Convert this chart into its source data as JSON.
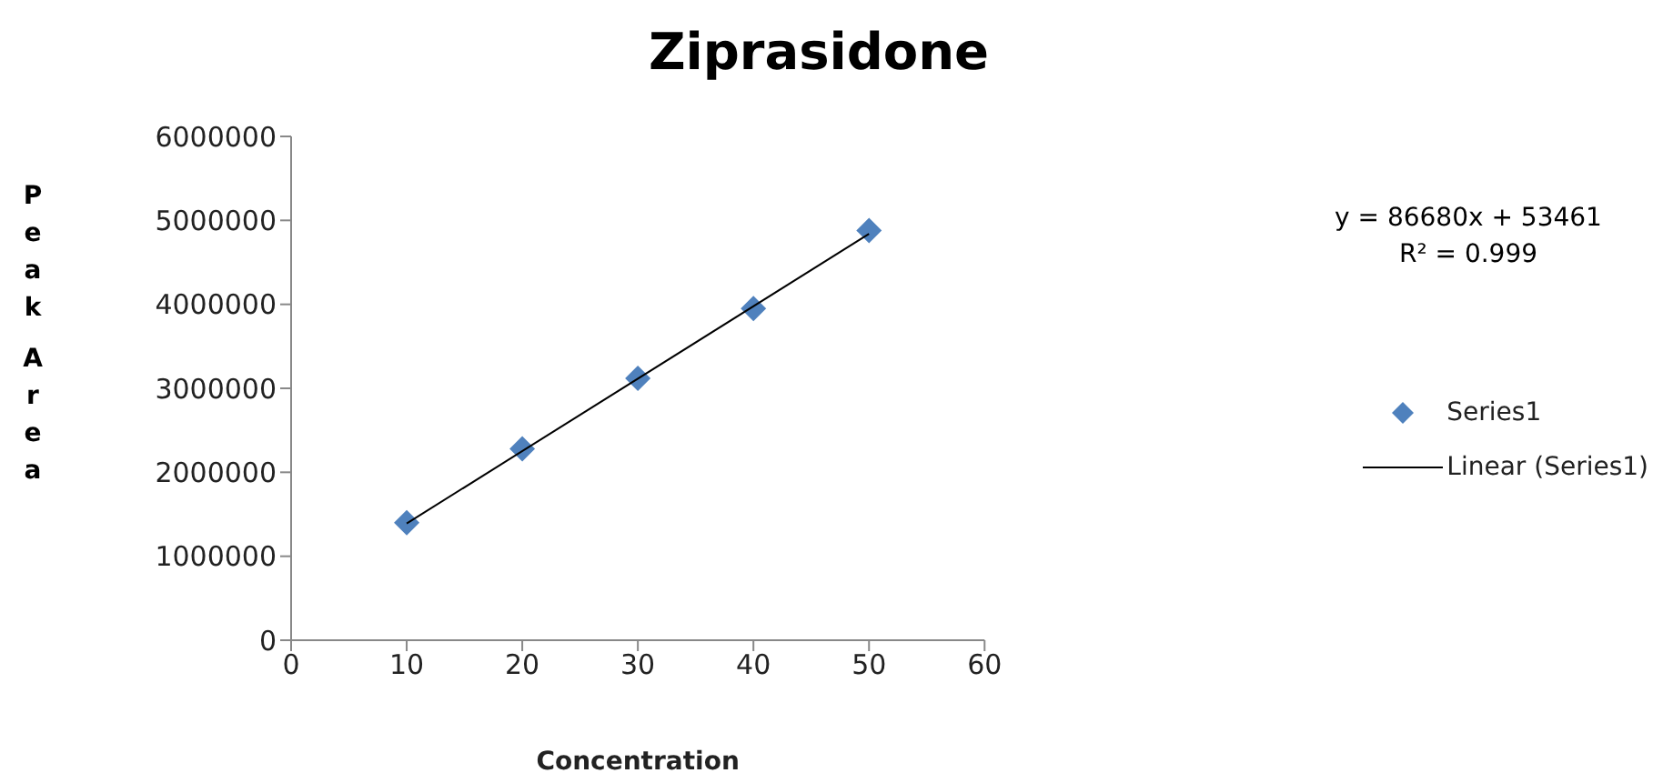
{
  "chart_data": {
    "type": "scatter",
    "title": "Ziprasidone",
    "xlabel": "Concentration",
    "ylabel": "Peak Area",
    "xlim": [
      0,
      60
    ],
    "xticks": [
      0,
      10,
      20,
      30,
      40,
      50,
      60
    ],
    "ylim": [
      0,
      6000000
    ],
    "yticks": [
      0,
      1000000,
      2000000,
      3000000,
      4000000,
      5000000,
      6000000
    ],
    "legend": "right",
    "marker": "diamond",
    "annotations": [
      "y = 86680x + 53461",
      "R² = 0.999"
    ],
    "series": [
      {
        "name": "Series1",
        "color": "#4f81bd",
        "x": [
          10,
          20,
          30,
          40,
          50
        ],
        "values": [
          1400000,
          2280000,
          3120000,
          3950000,
          4880000
        ]
      },
      {
        "name": "Linear (Series1)",
        "type": "line",
        "color": "#000000",
        "marker": "none",
        "x": [
          10,
          50
        ],
        "values": [
          1390000,
          4840000
        ]
      }
    ]
  }
}
